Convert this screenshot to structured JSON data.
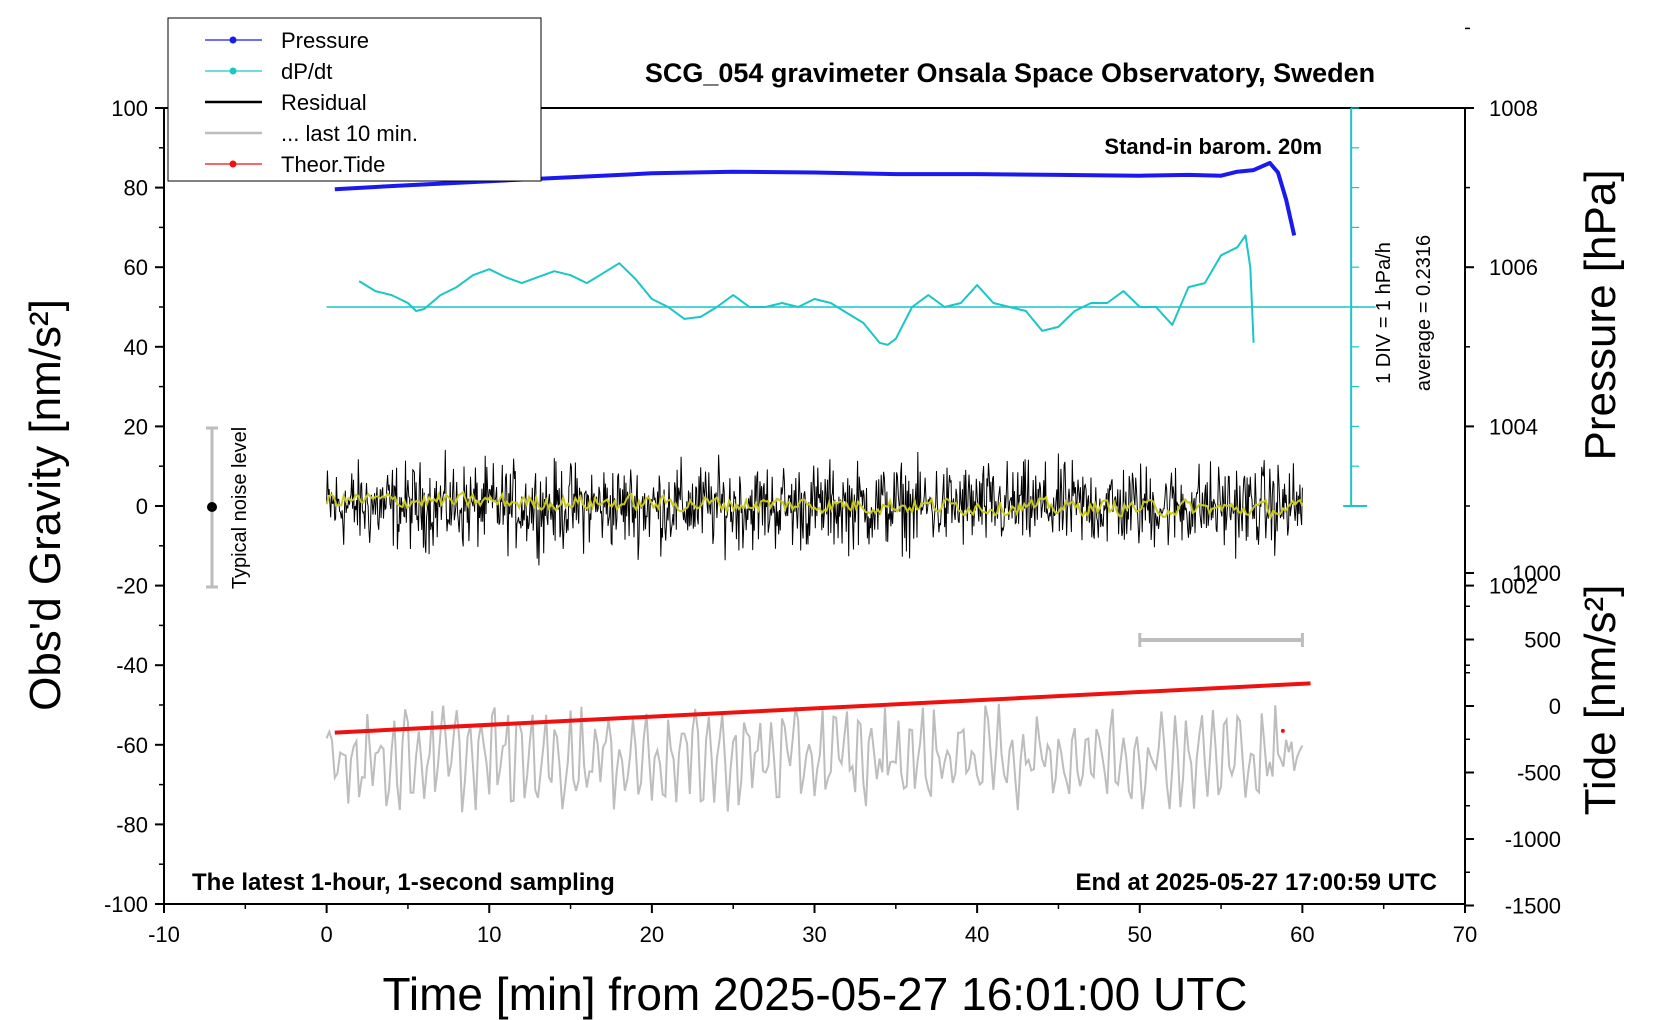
{
  "chart_data": {
    "type": "line",
    "title": "SCG_054 gravimeter Onsala Space Observatory, Sweden",
    "xlabel": "Time [min] from 2025-05-27 16:01:00 UTC",
    "ylabel_left": "Obs'd Gravity [nm/s²]",
    "ylabel_right_top": "Pressure [hPa]",
    "ylabel_right_bottom": "Tide [nm/s²]",
    "xlim": [
      -10,
      70
    ],
    "ylim": [
      -100,
      100
    ],
    "pressure_lim": [
      1000,
      1010
    ],
    "tide_lim": [
      -1500,
      1500
    ],
    "x_ticks": [
      "-10",
      "0",
      "10",
      "20",
      "30",
      "40",
      "50",
      "60",
      "70"
    ],
    "y_ticks": [
      "-100",
      "-80",
      "-60",
      "-40",
      "-20",
      "0",
      "20",
      "40",
      "60",
      "80",
      "100"
    ],
    "pressure_ticks": [
      "1002",
      "1004",
      "1006",
      "1008"
    ],
    "tide_ticks": [
      "-1500",
      "-1000",
      "-500",
      "0",
      "500",
      "1000"
    ],
    "annotations": {
      "barometer": "Stand-in barom. 20m",
      "window": "The latest 1-hour, 1-second sampling",
      "end": "End at 2025-05-27 17:00:59 UTC",
      "noise": "Typical noise level",
      "div": "1 DIV = 1 hPa/h",
      "average": "average = 0.2316"
    },
    "legend": [
      {
        "label": "Pressure",
        "color": "#1a1aee"
      },
      {
        "label": "dP/dt",
        "color": "#1ac6c6"
      },
      {
        "label": "Residual",
        "color": "#000000"
      },
      {
        "label": "... last 10 min.",
        "color": "#bdbdbd"
      },
      {
        "label": "Theor.Tide",
        "color": "#ee1111"
      }
    ],
    "series": [
      {
        "name": "Pressure",
        "unit": "hPa",
        "color": "#1a1aee",
        "x": [
          0.5,
          5,
          10,
          15,
          20,
          25,
          30,
          35,
          40,
          45,
          50,
          53,
          55,
          56,
          57,
          58,
          58.5,
          59,
          59.5
        ],
        "values": [
          1006.98,
          1007.03,
          1007.08,
          1007.13,
          1007.18,
          1007.2,
          1007.19,
          1007.17,
          1007.17,
          1007.16,
          1007.15,
          1007.16,
          1007.15,
          1007.2,
          1007.22,
          1007.31,
          1007.19,
          1006.85,
          1006.4
        ]
      },
      {
        "name": "dP/dt",
        "unit": "hPa/h",
        "color": "#1ac6c6",
        "baseline": 50,
        "x": [
          2,
          3,
          4,
          5,
          5.5,
          6,
          7,
          8,
          9,
          10,
          11,
          12,
          13,
          14,
          15,
          16,
          17,
          18,
          19,
          20,
          21,
          22,
          23,
          24,
          25,
          26,
          27,
          28,
          29,
          30,
          31,
          32,
          33,
          34,
          34.5,
          35,
          36,
          37,
          38,
          39,
          40,
          41,
          42,
          43,
          44,
          45,
          46,
          47,
          48,
          49,
          50,
          51,
          52,
          53,
          54,
          55,
          56,
          56.5,
          56.8,
          57
        ],
        "values": [
          56.5,
          54,
          53,
          51,
          49,
          49.5,
          53,
          55,
          58,
          59.5,
          57.5,
          56,
          57.5,
          59,
          58,
          56,
          58.5,
          61,
          57,
          52,
          50,
          47,
          47.5,
          50,
          53,
          50,
          50,
          51,
          50,
          52,
          51,
          48.5,
          46,
          41,
          40.5,
          42,
          50,
          53,
          50,
          51,
          55.5,
          51,
          50,
          49,
          44,
          45,
          49,
          51,
          51,
          54,
          50,
          50,
          45.5,
          55,
          56,
          63,
          65,
          68,
          60,
          41
        ]
      },
      {
        "name": "Residual",
        "unit": "nm/s²",
        "color": "#000000",
        "x_range": [
          0,
          60
        ],
        "amplitude": 14,
        "mean": 0
      },
      {
        "name": "... last 10 min.",
        "unit": "nm/s²",
        "color": "#bdbdbd",
        "x_range": [
          0,
          60
        ],
        "center": -63,
        "amplitude": 15,
        "scale_bar_x": [
          50,
          60
        ]
      },
      {
        "name": "Theor.Tide",
        "unit": "nm/s²",
        "color": "#ee1111",
        "x": [
          0.5,
          60.5
        ],
        "values": [
          -200,
          170
        ]
      }
    ]
  }
}
